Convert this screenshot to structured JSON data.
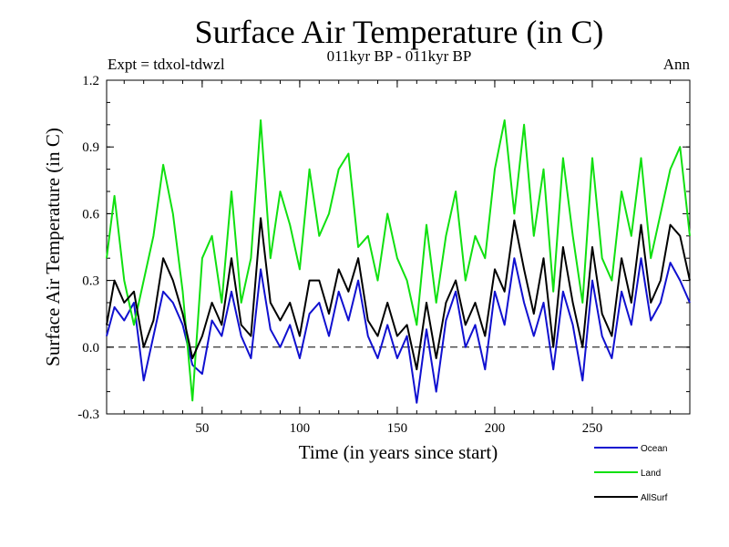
{
  "chart_data": {
    "type": "line",
    "title": "Surface Air Temperature (in C)",
    "subtitle": "011kyr BP - 011kyr BP",
    "experiment": "Expt = tdxol-tdwzl",
    "season": "Ann",
    "xlabel": "Time (in years since start)",
    "ylabel": "Surface Air Temperature (in C)",
    "xlim": [
      1,
      300
    ],
    "ylim": [
      -0.3,
      1.2
    ],
    "xticks": [
      50,
      100,
      150,
      200,
      250
    ],
    "yticks": [
      -0.3,
      0.0,
      0.3,
      0.6,
      0.9,
      1.2
    ],
    "ytick_labels": [
      "-0.3",
      "0.0",
      "0.3",
      "0.6",
      "0.9",
      "1.2"
    ],
    "zero_line": "dashed",
    "grid": false,
    "legend_position": "bottom-right",
    "x": [
      1,
      5,
      10,
      15,
      20,
      25,
      30,
      35,
      40,
      45,
      50,
      55,
      60,
      65,
      70,
      75,
      80,
      85,
      90,
      95,
      100,
      105,
      110,
      115,
      120,
      125,
      130,
      135,
      140,
      145,
      150,
      155,
      160,
      165,
      170,
      175,
      180,
      185,
      190,
      195,
      200,
      205,
      210,
      215,
      220,
      225,
      230,
      235,
      240,
      245,
      250,
      255,
      260,
      265,
      270,
      275,
      280,
      285,
      290,
      295,
      300
    ],
    "series": [
      {
        "name": "Ocean",
        "color": "#1010d0",
        "values": [
          0.05,
          0.18,
          0.12,
          0.2,
          -0.15,
          0.05,
          0.25,
          0.2,
          0.1,
          -0.08,
          -0.12,
          0.12,
          0.05,
          0.25,
          0.05,
          -0.05,
          0.35,
          0.08,
          0.0,
          0.1,
          -0.05,
          0.15,
          0.2,
          0.05,
          0.25,
          0.12,
          0.3,
          0.05,
          -0.05,
          0.1,
          -0.05,
          0.05,
          -0.25,
          0.08,
          -0.2,
          0.12,
          0.25,
          0.0,
          0.1,
          -0.1,
          0.25,
          0.1,
          0.4,
          0.2,
          0.05,
          0.2,
          -0.1,
          0.25,
          0.1,
          -0.15,
          0.3,
          0.05,
          -0.05,
          0.25,
          0.1,
          0.4,
          0.12,
          0.2,
          0.38,
          0.3,
          0.2
        ]
      },
      {
        "name": "Land",
        "color": "#10e010",
        "values": [
          0.4,
          0.68,
          0.3,
          0.1,
          0.3,
          0.5,
          0.82,
          0.6,
          0.25,
          -0.24,
          0.4,
          0.5,
          0.2,
          0.7,
          0.2,
          0.4,
          1.02,
          0.4,
          0.7,
          0.55,
          0.35,
          0.8,
          0.5,
          0.6,
          0.8,
          0.87,
          0.45,
          0.5,
          0.3,
          0.6,
          0.4,
          0.3,
          0.1,
          0.55,
          0.2,
          0.5,
          0.7,
          0.3,
          0.5,
          0.4,
          0.8,
          1.02,
          0.6,
          1.0,
          0.5,
          0.8,
          0.25,
          0.85,
          0.5,
          0.2,
          0.85,
          0.4,
          0.3,
          0.7,
          0.5,
          0.85,
          0.4,
          0.6,
          0.8,
          0.9,
          0.5
        ]
      },
      {
        "name": "AllSurf",
        "color": "#000000",
        "values": [
          0.1,
          0.3,
          0.2,
          0.25,
          0.0,
          0.12,
          0.4,
          0.3,
          0.15,
          -0.05,
          0.05,
          0.2,
          0.1,
          0.4,
          0.1,
          0.05,
          0.58,
          0.2,
          0.12,
          0.2,
          0.05,
          0.3,
          0.3,
          0.15,
          0.35,
          0.25,
          0.4,
          0.12,
          0.05,
          0.2,
          0.05,
          0.1,
          -0.1,
          0.2,
          -0.05,
          0.2,
          0.3,
          0.1,
          0.2,
          0.05,
          0.35,
          0.25,
          0.57,
          0.35,
          0.15,
          0.4,
          0.0,
          0.45,
          0.2,
          0.0,
          0.45,
          0.15,
          0.05,
          0.4,
          0.2,
          0.55,
          0.2,
          0.3,
          0.55,
          0.5,
          0.3
        ]
      }
    ]
  }
}
